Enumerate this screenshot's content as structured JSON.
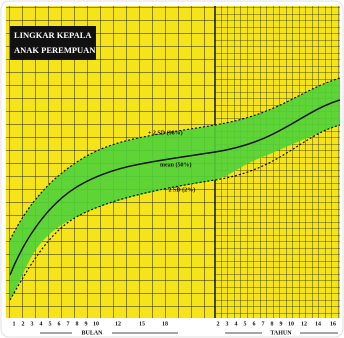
{
  "title": [
    "LINGKAR KEPALA",
    "ANAK PEREMPUAN"
  ],
  "curve_labels": {
    "upper": "+ 2 SD (98%)",
    "mean": "mean (50%)",
    "lower": "- 2 SD (2%)"
  },
  "x_axis": {
    "months": [
      1,
      2,
      3,
      4,
      5,
      6,
      7,
      8,
      9,
      10,
      12,
      15,
      18
    ],
    "months_label": "BULAN",
    "years": [
      2,
      3,
      4,
      5,
      6,
      7,
      8,
      9,
      10,
      12,
      14,
      16
    ],
    "years_label": "TAHUN"
  }
}
